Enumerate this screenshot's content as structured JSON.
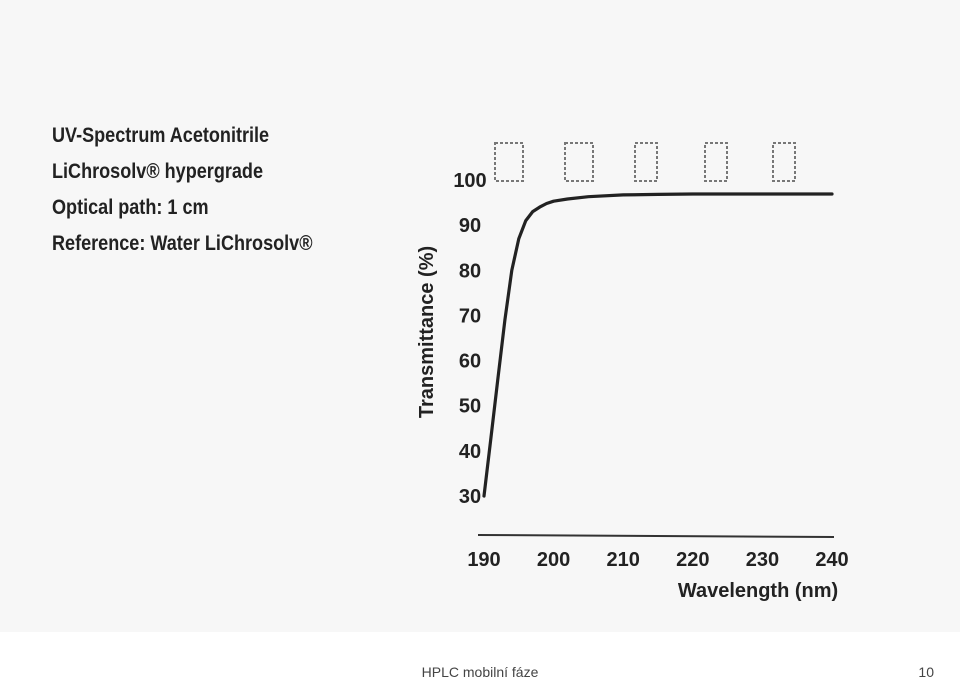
{
  "chart_info": {
    "line1": "UV-Spectrum Acetonitrile",
    "line2": "LiChrosolv® hypergrade",
    "line3": "Optical path: 1 cm",
    "line4": "Reference: Water LiChrosolv®"
  },
  "chart_data": {
    "type": "line",
    "title": "",
    "xlabel": "Wavelength (nm)",
    "ylabel": "Transmittance (%)",
    "xlim": [
      190,
      240
    ],
    "ylim": [
      30,
      100
    ],
    "x_ticks": [
      190,
      200,
      210,
      220,
      230,
      240
    ],
    "y_ticks": [
      30,
      40,
      50,
      60,
      70,
      80,
      90,
      100
    ],
    "grid": false,
    "series": [
      {
        "color": "#222222",
        "x": [
          190,
          191,
          192,
          193,
          194,
          195,
          196,
          197,
          198,
          199,
          200,
          202,
          205,
          210,
          215,
          220,
          225,
          230,
          235,
          240
        ],
        "y": [
          30,
          43,
          56,
          69,
          80,
          87,
          91,
          93,
          94,
          94.8,
          95.3,
          95.8,
          96.3,
          96.7,
          96.8,
          96.9,
          96.9,
          96.9,
          96.9,
          96.9
        ]
      }
    ]
  },
  "footer": {
    "text": "HPLC mobilní fáze",
    "page": "10"
  }
}
